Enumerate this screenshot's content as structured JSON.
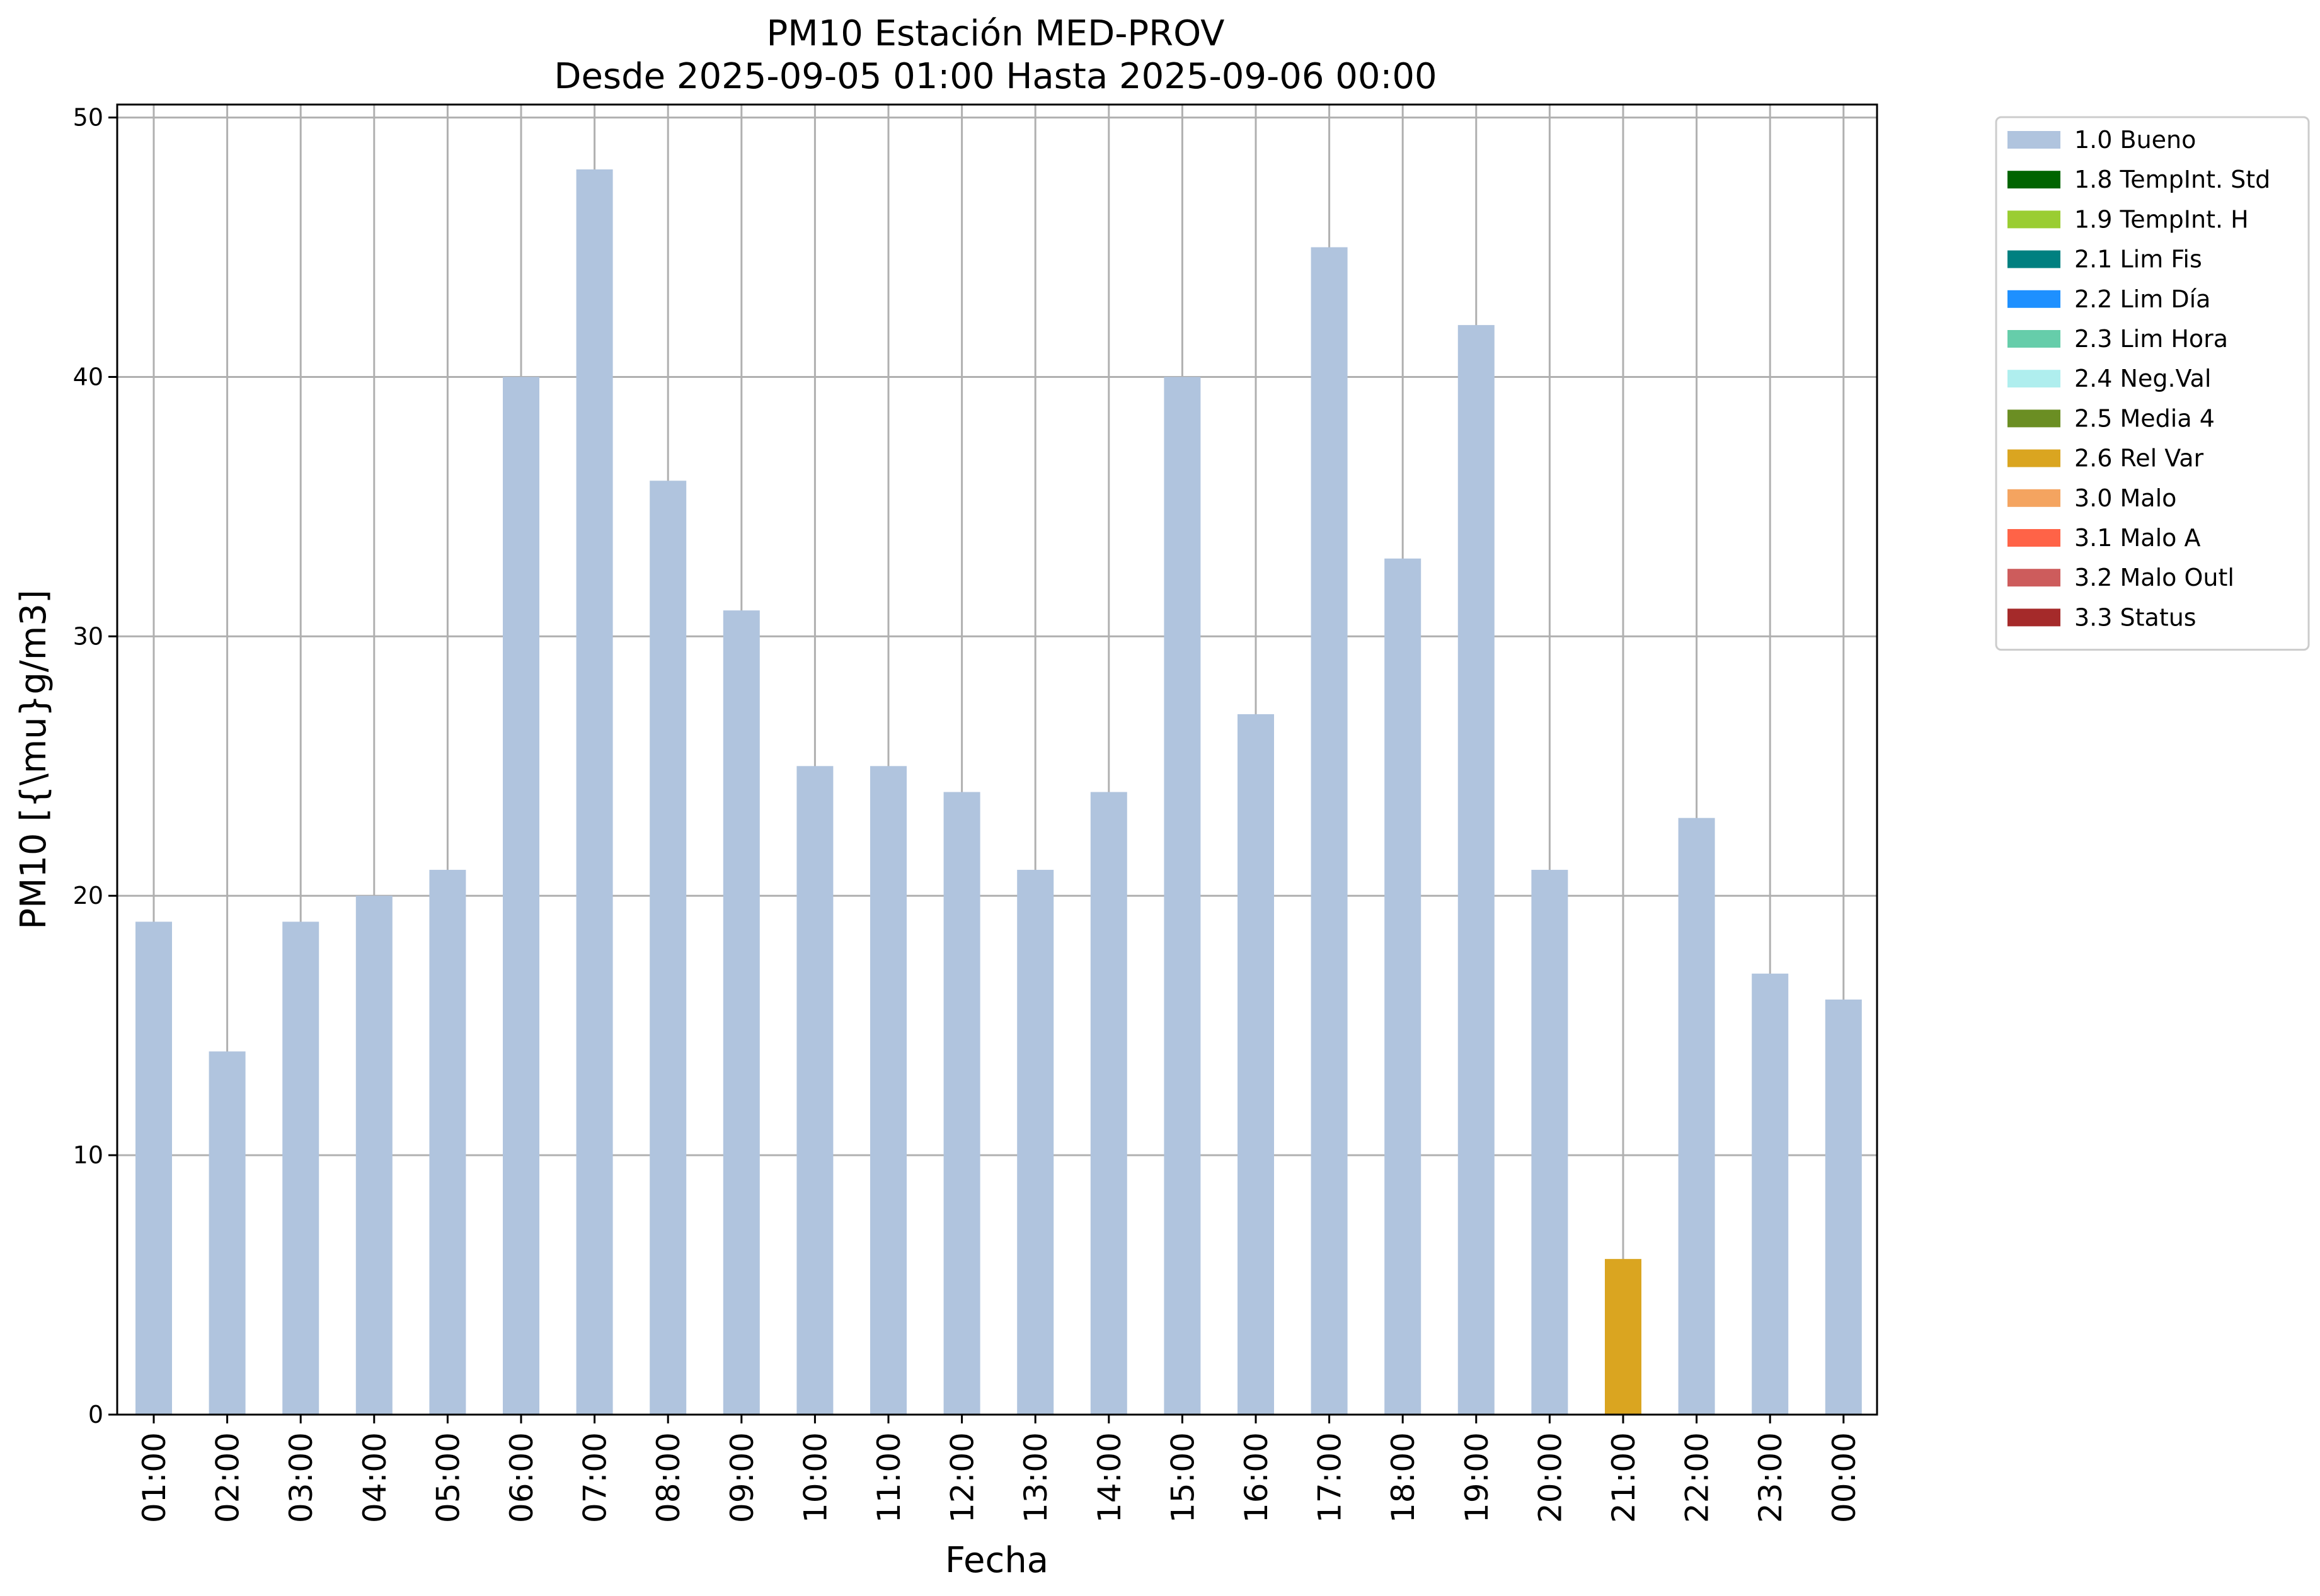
{
  "chart_data": {
    "type": "bar",
    "title": "PM10 Estación MED-PROV",
    "subtitle": "Desde 2025-09-05 01:00 Hasta 2025-09-06 00:00",
    "xlabel": "Fecha",
    "ylabel": "PM10 [{\\mu}g/m3]",
    "ylim": [
      0,
      50.5
    ],
    "yticks": [
      0,
      10,
      20,
      30,
      40,
      50
    ],
    "grid": true,
    "legend_position": "outside-top-right",
    "categories": [
      "01:00",
      "02:00",
      "03:00",
      "04:00",
      "05:00",
      "06:00",
      "07:00",
      "08:00",
      "09:00",
      "10:00",
      "11:00",
      "12:00",
      "13:00",
      "14:00",
      "15:00",
      "16:00",
      "17:00",
      "18:00",
      "19:00",
      "20:00",
      "21:00",
      "22:00",
      "23:00",
      "00:00"
    ],
    "values": [
      19,
      14,
      19,
      20,
      21,
      40,
      48,
      36,
      31,
      25,
      25,
      24,
      21,
      24,
      40,
      27,
      45,
      33,
      42,
      21,
      6,
      23,
      17,
      16
    ],
    "flags": [
      "1.0 Bueno",
      "1.0 Bueno",
      "1.0 Bueno",
      "1.0 Bueno",
      "1.0 Bueno",
      "1.0 Bueno",
      "1.0 Bueno",
      "1.0 Bueno",
      "1.0 Bueno",
      "1.0 Bueno",
      "1.0 Bueno",
      "1.0 Bueno",
      "1.0 Bueno",
      "1.0 Bueno",
      "1.0 Bueno",
      "1.0 Bueno",
      "1.0 Bueno",
      "1.0 Bueno",
      "1.0 Bueno",
      "1.0 Bueno",
      "2.6 Rel Var",
      "1.0 Bueno",
      "1.0 Bueno",
      "1.0 Bueno"
    ],
    "legend": [
      {
        "label": "1.0 Bueno",
        "color": "#b0c4de"
      },
      {
        "label": "1.8 TempInt. Std",
        "color": "#006400"
      },
      {
        "label": "1.9 TempInt. H",
        "color": "#9acd32"
      },
      {
        "label": "2.1 Lim Fis",
        "color": "#008080"
      },
      {
        "label": "2.2 Lim Día",
        "color": "#1e90ff"
      },
      {
        "label": "2.3 Lim Hora",
        "color": "#66cdaa"
      },
      {
        "label": "2.4 Neg.Val",
        "color": "#afeeee"
      },
      {
        "label": "2.5 Media 4",
        "color": "#6b8e23"
      },
      {
        "label": "2.6 Rel Var",
        "color": "#daa520"
      },
      {
        "label": "3.0 Malo",
        "color": "#f4a460"
      },
      {
        "label": "3.1 Malo A",
        "color": "#ff6347"
      },
      {
        "label": "3.2 Malo Outl",
        "color": "#cd5c5c"
      },
      {
        "label": "3.3 Status",
        "color": "#a52a2a"
      }
    ]
  }
}
